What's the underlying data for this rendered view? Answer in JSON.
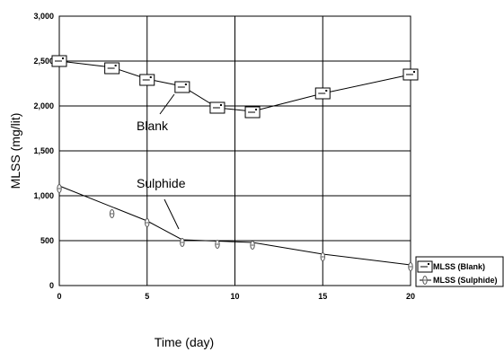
{
  "chart_data": {
    "type": "line",
    "title": "",
    "xlabel": "Time (day)",
    "ylabel": "MLSS (mg/lit)",
    "xlim": [
      0,
      20
    ],
    "ylim": [
      0,
      3000
    ],
    "x_ticks": [
      0,
      5,
      10,
      15,
      20
    ],
    "y_ticks": [
      0,
      500,
      1000,
      1500,
      2000,
      2500,
      3000
    ],
    "x_tick_labels": [
      "0",
      "5",
      "10",
      "15",
      "20"
    ],
    "y_tick_labels": [
      "0",
      "500",
      "1,000",
      "1,500",
      "2,000",
      "2,500",
      "3,000"
    ],
    "grid": true,
    "legend_position": "right",
    "series": [
      {
        "name": "MLSS (Blank)",
        "marker": "square",
        "color": "#000000",
        "x": [
          0,
          3,
          5,
          7,
          9,
          11,
          15,
          20
        ],
        "y": [
          2500,
          2430,
          2300,
          2220,
          1980,
          1940,
          2140,
          2350
        ],
        "x_marker": [
          0,
          3,
          5,
          7,
          9,
          11,
          15,
          20
        ],
        "y_marker": [
          2500,
          2420,
          2290,
          2210,
          1980,
          1930,
          2140,
          2350
        ]
      },
      {
        "name": "MLSS (Sulphide)",
        "marker": "triangle",
        "color": "#000000",
        "x": [
          0,
          5,
          7,
          11,
          15,
          20
        ],
        "y": [
          1110,
          720,
          510,
          480,
          350,
          230
        ],
        "x_marker": [
          0,
          3,
          5,
          7,
          9,
          11,
          15,
          20
        ],
        "y_marker": [
          1080,
          800,
          700,
          480,
          460,
          450,
          320,
          210
        ]
      }
    ],
    "annotations": [
      {
        "text": "Blank",
        "x": 10,
        "y": 1750
      },
      {
        "text": "Sulphide",
        "x": 10,
        "y": 1100
      }
    ]
  }
}
